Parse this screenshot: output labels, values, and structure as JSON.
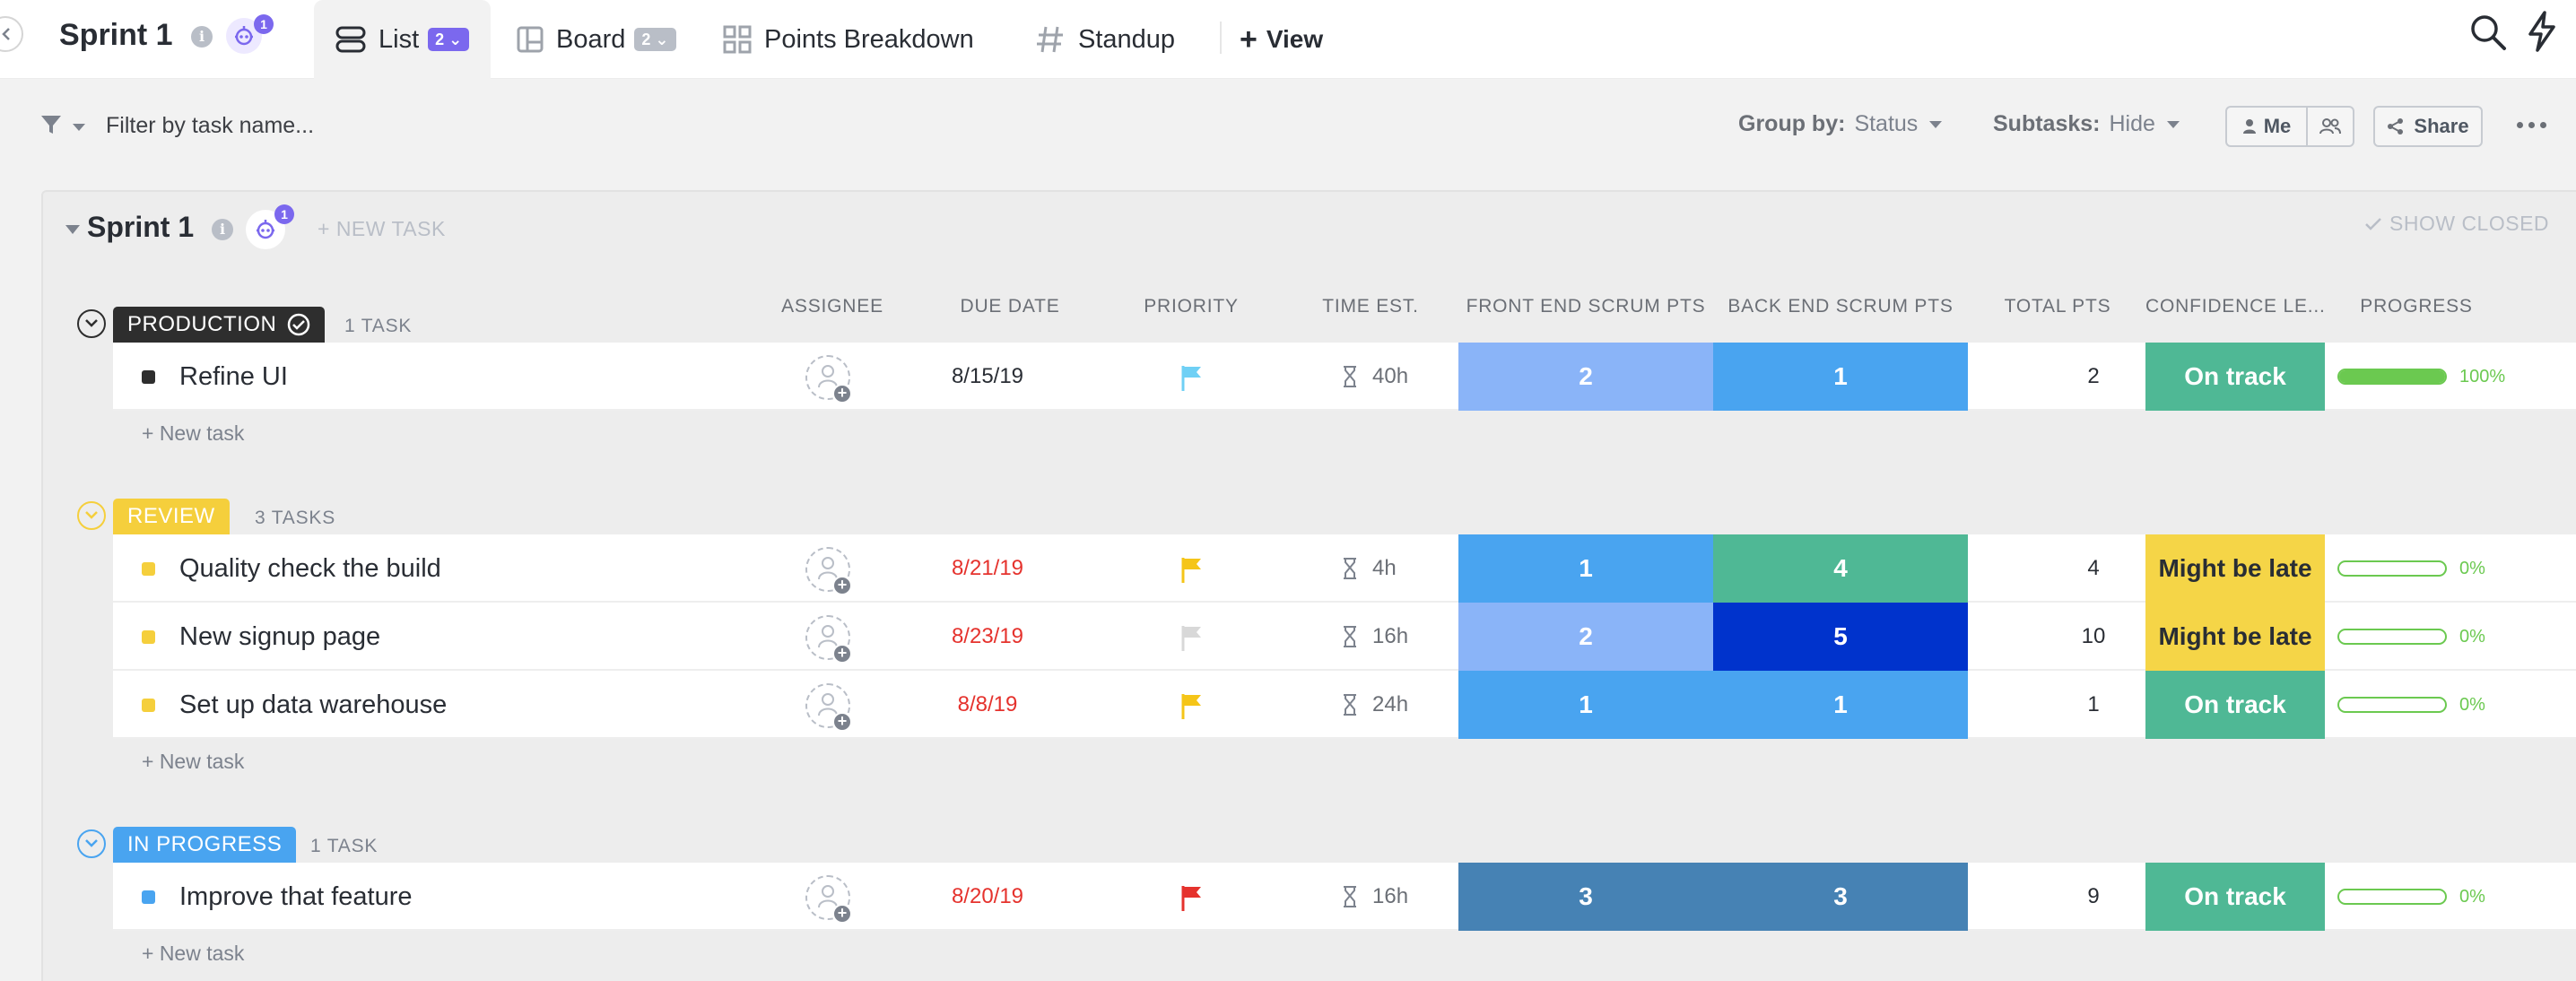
{
  "header": {
    "title": "Sprint 1",
    "bot_badge": "1",
    "tabs": [
      {
        "label": "List",
        "count": "2"
      },
      {
        "label": "Board",
        "count": "2"
      },
      {
        "label": "Points Breakdown"
      },
      {
        "label": "Standup"
      }
    ],
    "add_view_label": "View"
  },
  "filter": {
    "placeholder": "Filter by task name...",
    "group_by_label": "Group by:",
    "group_by_value": "Status",
    "subtasks_label": "Subtasks:",
    "subtasks_value": "Hide",
    "me_label": "Me",
    "share_label": "Share"
  },
  "list": {
    "title": "Sprint 1",
    "bot_badge": "1",
    "new_task_label": "+ NEW TASK",
    "show_closed_label": "SHOW CLOSED"
  },
  "columns": [
    "ASSIGNEE",
    "DUE DATE",
    "PRIORITY",
    "TIME EST.",
    "FRONT END SCRUM PTS",
    "BACK END SCRUM PTS",
    "TOTAL PTS",
    "CONFIDENCE LE...",
    "PROGRESS"
  ],
  "new_task_row_label": "+ New task",
  "colors": {
    "production": "#2e2e2e",
    "review": "#f5cf3c",
    "in_progress": "#49a4f0",
    "on_track": "#4fb895",
    "might_be_late": "#f5d547",
    "progress_green": "#6bc950",
    "overdue_red": "#e5322d"
  },
  "groups": [
    {
      "status": "PRODUCTION",
      "count": "1 TASK",
      "tasks": [
        {
          "name": "Refine UI",
          "due": "8/15/19",
          "time": "40h",
          "fe": "2",
          "be": "1",
          "total": "2",
          "confidence": "On track",
          "progress": "100%"
        }
      ]
    },
    {
      "status": "REVIEW",
      "count": "3 TASKS",
      "tasks": [
        {
          "name": "Quality check the build",
          "due": "8/21/19",
          "time": "4h",
          "fe": "1",
          "be": "4",
          "total": "4",
          "confidence": "Might be late",
          "progress": "0%"
        },
        {
          "name": "New signup page",
          "due": "8/23/19",
          "time": "16h",
          "fe": "2",
          "be": "5",
          "total": "10",
          "confidence": "Might be late",
          "progress": "0%"
        },
        {
          "name": "Set up data warehouse",
          "due": "8/8/19",
          "time": "24h",
          "fe": "1",
          "be": "1",
          "total": "1",
          "confidence": "On track",
          "progress": "0%"
        }
      ]
    },
    {
      "status": "IN PROGRESS",
      "count": "1 TASK",
      "tasks": [
        {
          "name": "Improve that feature",
          "due": "8/20/19",
          "time": "16h",
          "fe": "3",
          "be": "3",
          "total": "9",
          "confidence": "On track",
          "progress": "0%"
        }
      ]
    }
  ]
}
